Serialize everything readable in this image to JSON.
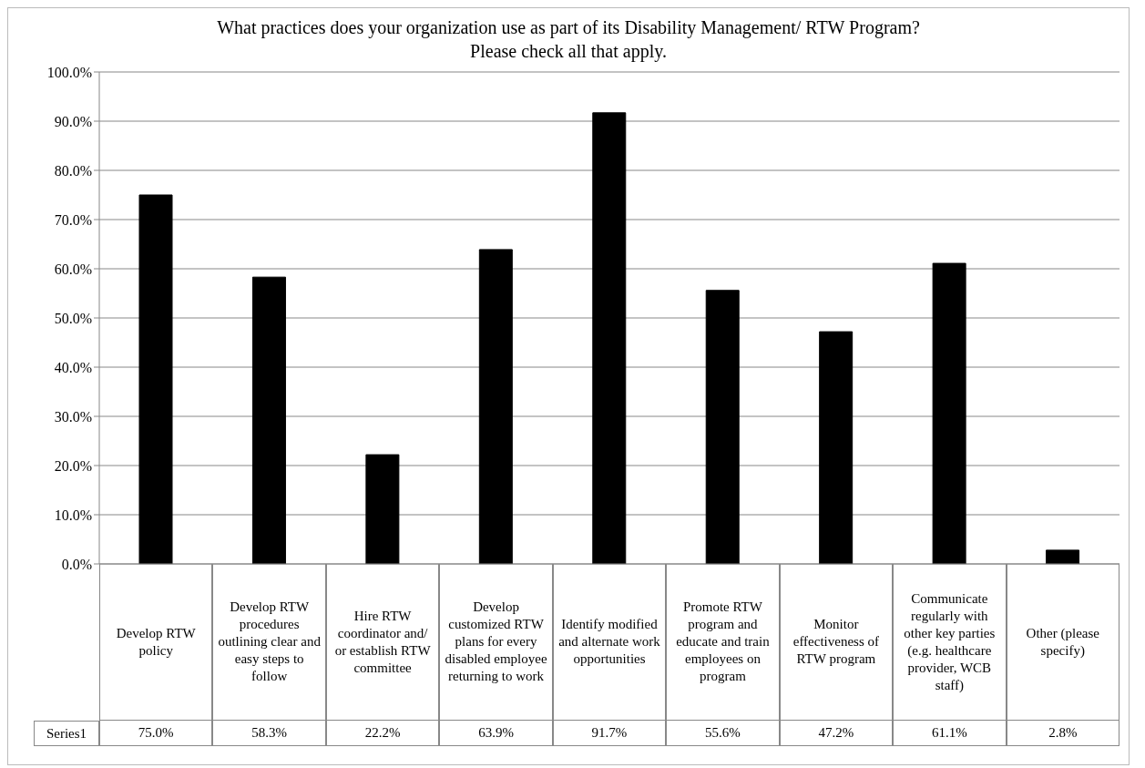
{
  "chart_data": {
    "type": "bar",
    "title": "What practices does your organization use as part of its Disability Management/ RTW Program? Please check all that apply.",
    "categories": [
      "Develop RTW policy",
      "Develop RTW procedures outlining clear and easy steps to follow",
      "Hire RTW coordinator and/ or establish RTW committee",
      "Develop customized RTW plans for every disabled employee returning to work",
      "Identify modified and alternate work opportunities",
      "Promote RTW program and educate and train employees on program",
      "Monitor effectiveness of RTW program",
      "Communicate regularly with other key parties (e.g. healthcare provider, WCB staff)",
      "Other (please specify)"
    ],
    "series": [
      {
        "name": "Series1",
        "color": "#000000",
        "values": [
          75.0,
          58.3,
          22.2,
          63.9,
          91.7,
          55.6,
          47.2,
          61.1,
          2.8
        ],
        "value_labels": [
          "75.0%",
          "58.3%",
          "22.2%",
          "63.9%",
          "91.7%",
          "55.6%",
          "47.2%",
          "61.1%",
          "2.8%"
        ]
      }
    ],
    "ylim": [
      0,
      100
    ],
    "yticks": [
      {
        "value": 0,
        "label": "0.0%"
      },
      {
        "value": 10,
        "label": "10.0%"
      },
      {
        "value": 20,
        "label": "20.0%"
      },
      {
        "value": 30,
        "label": "30.0%"
      },
      {
        "value": 40,
        "label": "40.0%"
      },
      {
        "value": 50,
        "label": "50.0%"
      },
      {
        "value": 60,
        "label": "60.0%"
      },
      {
        "value": 70,
        "label": "70.0%"
      },
      {
        "value": 80,
        "label": "80.0%"
      },
      {
        "value": 90,
        "label": "90.0%"
      },
      {
        "value": 100,
        "label": "100.0%"
      }
    ],
    "grid": "y",
    "legend": false
  }
}
